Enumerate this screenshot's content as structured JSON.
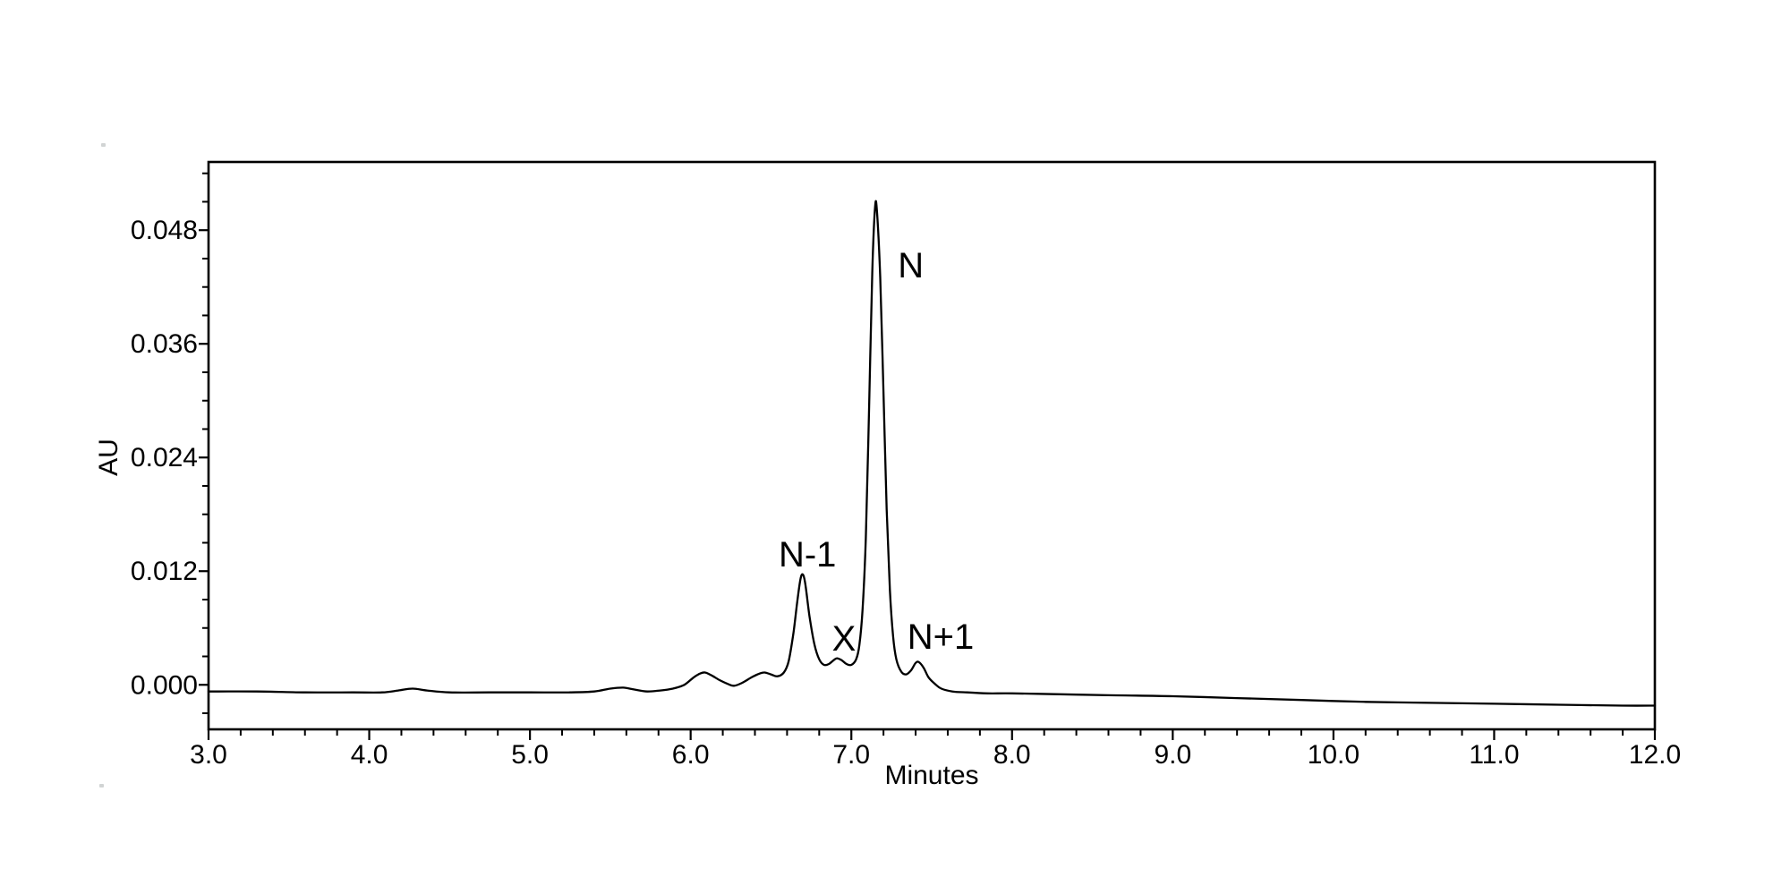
{
  "chart_data": {
    "type": "line",
    "title": "",
    "xlabel": "Minutes",
    "ylabel": "AU",
    "xlim": [
      3.0,
      12.0
    ],
    "ylim": [
      -0.0047,
      0.0552
    ],
    "grid": false,
    "legend_position": "none",
    "line_color": "#000000",
    "background_color": "#ffffff",
    "x_ticks": {
      "values": [
        3,
        4,
        5,
        6,
        7,
        8,
        9,
        10,
        11,
        12
      ],
      "labels": [
        "3.0",
        "4.0",
        "5.0",
        "6.0",
        "7.0",
        "8.0",
        "9.0",
        "10.0",
        "11.0",
        "12.0"
      ],
      "minor_step": 0.2
    },
    "y_ticks": {
      "values": [
        0.0,
        0.012,
        0.024,
        0.036,
        0.048
      ],
      "labels": [
        "0.000",
        "0.012",
        "0.024",
        "0.036",
        "0.048"
      ],
      "minor_step": 0.003
    },
    "peaks": [
      {
        "label": "N-1",
        "retention_time_min": 6.69,
        "apex_au": 0.0116
      },
      {
        "label": "X",
        "retention_time_min": 6.91,
        "apex_au": 0.0028
      },
      {
        "label": "N",
        "retention_time_min": 7.15,
        "apex_au": 0.0503
      },
      {
        "label": "N+1",
        "retention_time_min": 7.42,
        "apex_au": 0.0024
      }
    ],
    "annotations": [
      {
        "text": "N-1",
        "x_min": 6.727,
        "y_au": 0.0125
      },
      {
        "text": "X",
        "x_min": 6.954,
        "y_au": 0.0036
      },
      {
        "text": "N",
        "x_min": 7.37,
        "y_au": 0.043
      },
      {
        "text": "N+1",
        "x_min": 7.556,
        "y_au": 0.0038
      }
    ],
    "series": [
      {
        "name": "absorbance-trace",
        "points": [
          [
            3.0,
            -0.0007
          ],
          [
            3.3,
            -0.0007
          ],
          [
            3.6,
            -0.0008
          ],
          [
            3.9,
            -0.0008
          ],
          [
            4.08,
            -0.0008
          ],
          [
            4.18,
            -0.0006
          ],
          [
            4.27,
            -0.0004
          ],
          [
            4.36,
            -0.0006
          ],
          [
            4.5,
            -0.0008
          ],
          [
            4.75,
            -0.0008
          ],
          [
            5.0,
            -0.0008
          ],
          [
            5.25,
            -0.0008
          ],
          [
            5.4,
            -0.0007
          ],
          [
            5.5,
            -0.0004
          ],
          [
            5.58,
            -0.0003
          ],
          [
            5.65,
            -0.0005
          ],
          [
            5.73,
            -0.0007
          ],
          [
            5.81,
            -0.0006
          ],
          [
            5.89,
            -0.0004
          ],
          [
            5.96,
            0.0
          ],
          [
            6.02,
            0.0008
          ],
          [
            6.06,
            0.0012
          ],
          [
            6.09,
            0.0013
          ],
          [
            6.13,
            0.001
          ],
          [
            6.18,
            0.0005
          ],
          [
            6.23,
            0.0001
          ],
          [
            6.27,
            -0.0001
          ],
          [
            6.32,
            0.0002
          ],
          [
            6.38,
            0.0008
          ],
          [
            6.43,
            0.0012
          ],
          [
            6.46,
            0.0013
          ],
          [
            6.5,
            0.0011
          ],
          [
            6.54,
            0.0009
          ],
          [
            6.58,
            0.0013
          ],
          [
            6.61,
            0.0025
          ],
          [
            6.64,
            0.0055
          ],
          [
            6.665,
            0.009
          ],
          [
            6.685,
            0.0113
          ],
          [
            6.7,
            0.0116
          ],
          [
            6.715,
            0.0105
          ],
          [
            6.74,
            0.0072
          ],
          [
            6.77,
            0.0043
          ],
          [
            6.8,
            0.0027
          ],
          [
            6.83,
            0.0021
          ],
          [
            6.86,
            0.0022
          ],
          [
            6.89,
            0.0026
          ],
          [
            6.91,
            0.0028
          ],
          [
            6.94,
            0.0026
          ],
          [
            6.97,
            0.0022
          ],
          [
            7.0,
            0.0021
          ],
          [
            7.03,
            0.0027
          ],
          [
            7.05,
            0.0042
          ],
          [
            7.07,
            0.008
          ],
          [
            7.09,
            0.0155
          ],
          [
            7.11,
            0.029
          ],
          [
            7.13,
            0.0435
          ],
          [
            7.148,
            0.0505
          ],
          [
            7.16,
            0.0498
          ],
          [
            7.18,
            0.043
          ],
          [
            7.2,
            0.031
          ],
          [
            7.22,
            0.0185
          ],
          [
            7.24,
            0.01
          ],
          [
            7.26,
            0.0051
          ],
          [
            7.28,
            0.0027
          ],
          [
            7.31,
            0.0014
          ],
          [
            7.34,
            0.0011
          ],
          [
            7.37,
            0.0015
          ],
          [
            7.4,
            0.0023
          ],
          [
            7.42,
            0.0024
          ],
          [
            7.45,
            0.0018
          ],
          [
            7.48,
            0.0008
          ],
          [
            7.52,
            0.0001
          ],
          [
            7.56,
            -0.0004
          ],
          [
            7.63,
            -0.0007
          ],
          [
            7.72,
            -0.0008
          ],
          [
            7.85,
            -0.0009
          ],
          [
            8.0,
            -0.0009
          ],
          [
            8.3,
            -0.001
          ],
          [
            8.6,
            -0.0011
          ],
          [
            9.0,
            -0.0012
          ],
          [
            9.4,
            -0.0014
          ],
          [
            9.8,
            -0.0016
          ],
          [
            10.2,
            -0.0018
          ],
          [
            10.6,
            -0.0019
          ],
          [
            11.0,
            -0.002
          ],
          [
            11.4,
            -0.0021
          ],
          [
            11.8,
            -0.0022
          ],
          [
            12.0,
            -0.0022
          ]
        ]
      }
    ]
  }
}
